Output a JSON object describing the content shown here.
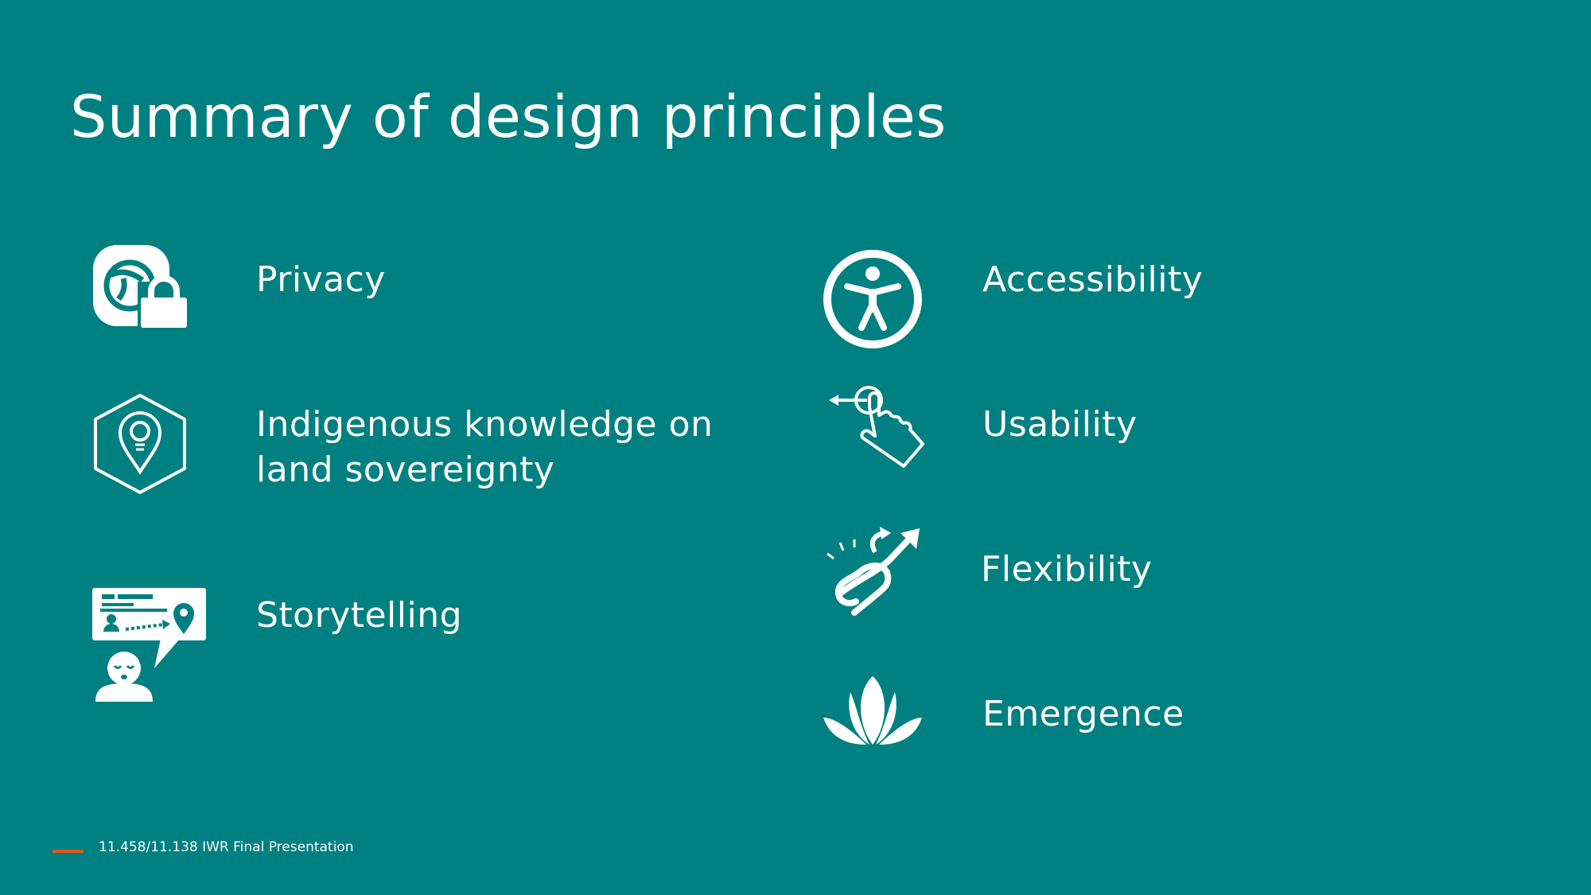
{
  "slide": {
    "title": "Summary of design principles",
    "background_color": "#008080",
    "accent_color": "#e2571c"
  },
  "principles": [
    {
      "icon": "privacy-lock-icon",
      "label": "Privacy"
    },
    {
      "icon": "lightbulb-location-icon",
      "label_line1": "Indigenous knowledge on",
      "label_line2": "land sovereignty"
    },
    {
      "icon": "storytelling-icon",
      "label": "Storytelling"
    },
    {
      "icon": "accessibility-icon",
      "label": "Accessibility"
    },
    {
      "icon": "swipe-hand-icon",
      "label": "Usability"
    },
    {
      "icon": "flexible-arrows-icon",
      "label": "Flexibility"
    },
    {
      "icon": "lotus-icon",
      "label": "Emergence"
    }
  ],
  "footer": {
    "text": "11.458/11.138 IWR Final Presentation"
  }
}
